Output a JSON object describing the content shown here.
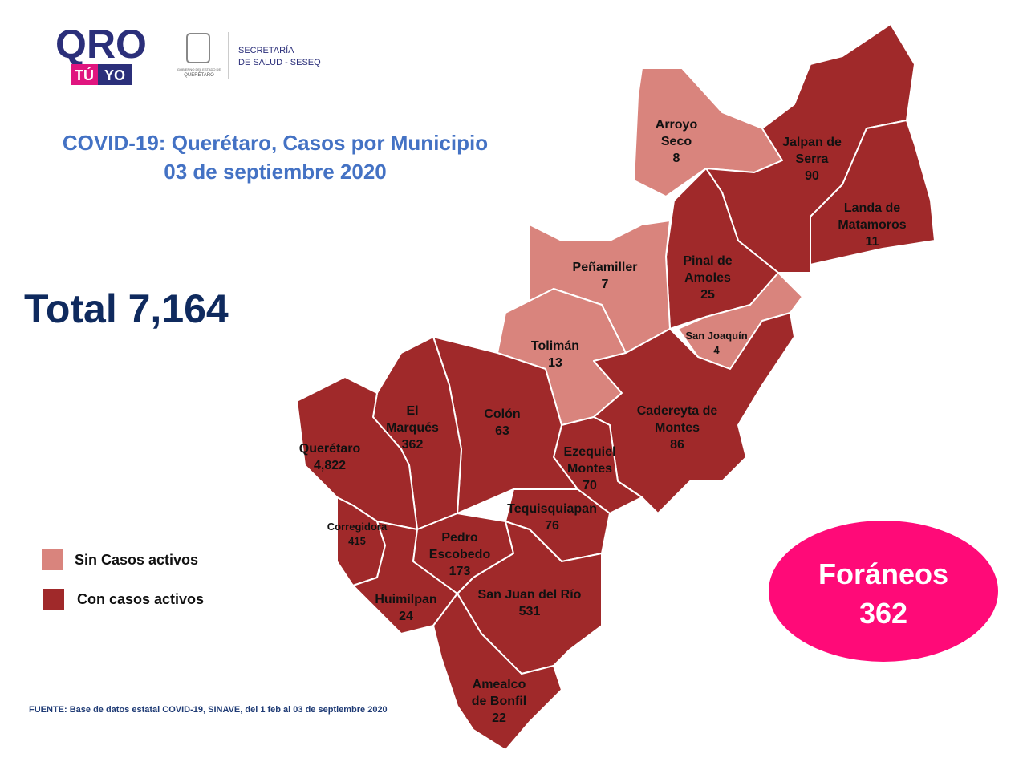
{
  "header": {
    "logo_main": "QRO",
    "logo_sub_1": "TÚ",
    "logo_sub_2": "YO",
    "agency_line_1": "SECRETARÍA",
    "agency_line_2": "DE SALUD - SESEQ",
    "gov_line_1": "GOBIERNO DEL ESTADO DE",
    "gov_line_2": "QUERÉTARO"
  },
  "title": {
    "line_1": "COVID-19: Querétaro, Casos por Municipio",
    "line_2": "03 de septiembre 2020"
  },
  "total": "Total 7,164",
  "legend": [
    {
      "label": "Sin Casos activos",
      "color": "#d9847d"
    },
    {
      "label": "Con casos activos",
      "color": "#a0292a"
    }
  ],
  "municipalities": [
    {
      "name": [
        "Arroyo",
        "Seco"
      ],
      "cases": "8",
      "color": "#d9847d"
    },
    {
      "name": [
        "Jalpan de",
        "Serra"
      ],
      "cases": "90",
      "color": "#a0292a"
    },
    {
      "name": [
        "Landa de",
        "Matamoros"
      ],
      "cases": "11",
      "color": "#a0292a"
    },
    {
      "name": [
        "Pinal de",
        "Amoles"
      ],
      "cases": "25",
      "color": "#a0292a"
    },
    {
      "name": [
        "San Joaquín"
      ],
      "cases": "4",
      "color": "#d9847d"
    },
    {
      "name": [
        "Peñamiller"
      ],
      "cases": "7",
      "color": "#d9847d"
    },
    {
      "name": [
        "Tolimán"
      ],
      "cases": "13",
      "color": "#d9847d"
    },
    {
      "name": [
        "Cadereyta de",
        "Montes"
      ],
      "cases": "86",
      "color": "#a0292a"
    },
    {
      "name": [
        "Ezequiel",
        "Montes"
      ],
      "cases": "70",
      "color": "#a0292a"
    },
    {
      "name": [
        "Colón"
      ],
      "cases": "63",
      "color": "#a0292a"
    },
    {
      "name": [
        "El",
        "Marqués"
      ],
      "cases": "362",
      "color": "#a0292a"
    },
    {
      "name": [
        "Querétaro"
      ],
      "cases": "4,822",
      "color": "#a0292a"
    },
    {
      "name": [
        "Corregidora"
      ],
      "cases": "415",
      "color": "#a0292a"
    },
    {
      "name": [
        "Huimilpan"
      ],
      "cases": "24",
      "color": "#a0292a"
    },
    {
      "name": [
        "Pedro",
        "Escobedo"
      ],
      "cases": "173",
      "color": "#a0292a"
    },
    {
      "name": [
        "Tequisquiapan"
      ],
      "cases": "76",
      "color": "#a0292a"
    },
    {
      "name": [
        "San Juan del Río"
      ],
      "cases": "531",
      "color": "#a0292a"
    },
    {
      "name": [
        "Amealco",
        "de Bonfil"
      ],
      "cases": "22",
      "color": "#a0292a"
    }
  ],
  "foraneos": {
    "label": "Foráneos",
    "cases": "362",
    "color": "#ff0a78"
  },
  "source": "FUENTE: Base de datos estatal COVID-19, SINAVE, del 1 feb al 03 de septiembre 2020"
}
